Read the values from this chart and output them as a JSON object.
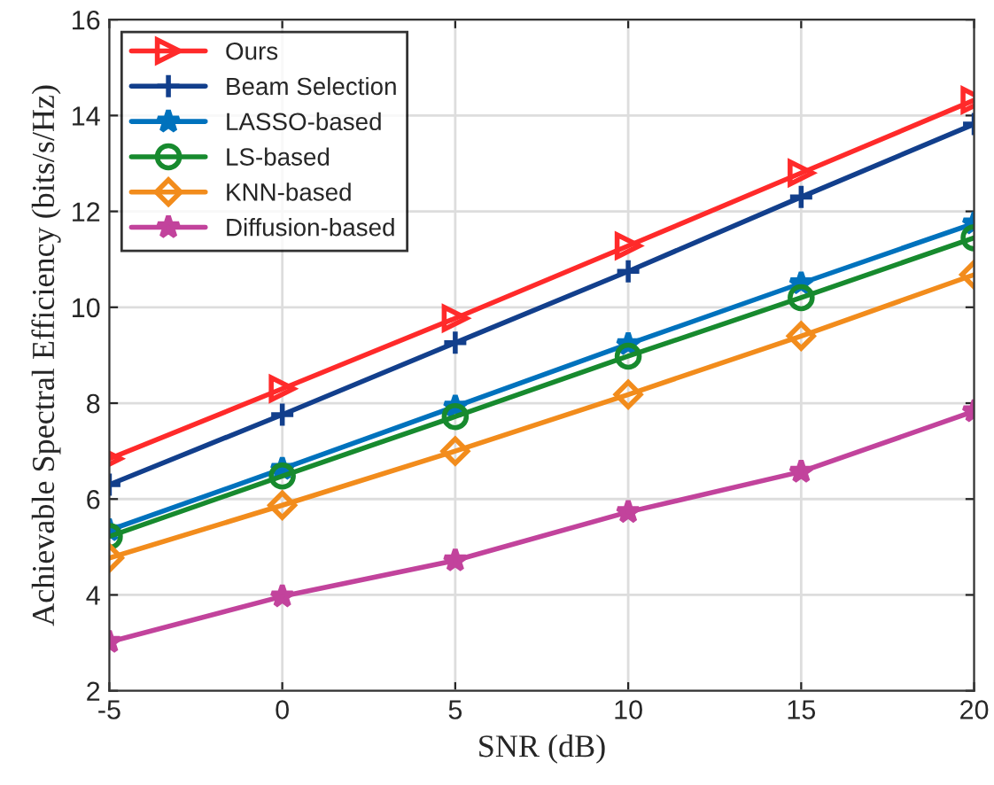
{
  "chart_data": {
    "type": "line",
    "xlabel": "SNR (dB)",
    "ylabel": "Achievable Spectral Efficiency (bits/s/Hz)",
    "x": [
      -5,
      0,
      5,
      10,
      15,
      20
    ],
    "series": [
      {
        "name": "Ours",
        "color": "#ff2a2a",
        "marker": "triangle",
        "values": [
          6.84,
          8.3,
          9.77,
          11.28,
          12.8,
          14.32
        ]
      },
      {
        "name": "Beam Selection",
        "color": "#123f8c",
        "marker": "cross",
        "values": [
          6.3,
          7.76,
          9.26,
          10.75,
          12.3,
          13.82
        ]
      },
      {
        "name": "LASSO-based",
        "color": "#0072bd",
        "marker": "star",
        "values": [
          5.35,
          6.63,
          7.93,
          9.23,
          10.5,
          11.75
        ]
      },
      {
        "name": "LS-based",
        "color": "#178a2e",
        "marker": "circle",
        "values": [
          5.22,
          6.48,
          7.72,
          8.98,
          10.2,
          11.45
        ]
      },
      {
        "name": "KNN-based",
        "color": "#f28c1c",
        "marker": "diamond",
        "values": [
          4.77,
          5.87,
          7.0,
          8.18,
          9.4,
          10.68
        ]
      },
      {
        "name": "Diffusion-based",
        "color": "#c2439c",
        "marker": "star",
        "values": [
          3.02,
          3.97,
          4.72,
          5.73,
          6.57,
          7.83
        ]
      }
    ],
    "xlim": [
      -5,
      20
    ],
    "xticks": [
      -5,
      0,
      5,
      10,
      15,
      20
    ],
    "ylim": [
      2,
      16
    ],
    "yticks": [
      2,
      4,
      6,
      8,
      10,
      12,
      14,
      16
    ],
    "grid": true,
    "legend": "top left",
    "line_style": "solid"
  }
}
